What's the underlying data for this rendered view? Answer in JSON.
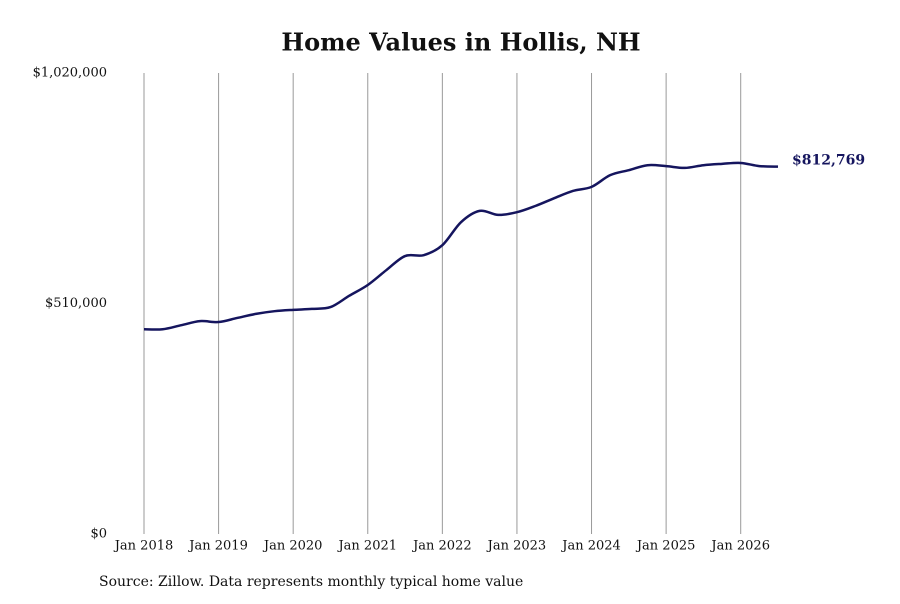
{
  "chart_data": {
    "type": "line",
    "title": "Home Values in Hollis, NH",
    "source": "Source: Zillow. Data represents monthly typical home value",
    "x": [
      "2018-01",
      "2018-04",
      "2018-07",
      "2018-10",
      "2019-01",
      "2019-04",
      "2019-07",
      "2019-10",
      "2020-01",
      "2020-04",
      "2020-07",
      "2020-10",
      "2021-01",
      "2021-04",
      "2021-07",
      "2021-10",
      "2022-01",
      "2022-04",
      "2022-07",
      "2022-10",
      "2023-01",
      "2023-04",
      "2023-07",
      "2023-10",
      "2024-01",
      "2024-04",
      "2024-07",
      "2024-10",
      "2025-01",
      "2025-04",
      "2025-07",
      "2025-10",
      "2026-01",
      "2026-04",
      "2026-07"
    ],
    "series": [
      {
        "name": "Home value",
        "color": "#15155e",
        "values": [
          453000,
          453000,
          462000,
          471000,
          469000,
          478000,
          487000,
          493000,
          496000,
          498000,
          502000,
          527000,
          551000,
          584000,
          615000,
          617000,
          639000,
          690000,
          715000,
          706000,
          712000,
          726000,
          743000,
          759000,
          768000,
          794000,
          805000,
          816000,
          814000,
          810000,
          816000,
          819000,
          821000,
          814000,
          812769
        ],
        "value_labels": [
          null,
          null,
          null,
          null,
          null,
          null,
          null,
          null,
          null,
          null,
          null,
          null,
          null,
          null,
          null,
          null,
          null,
          null,
          null,
          null,
          null,
          null,
          null,
          null,
          null,
          null,
          null,
          null,
          null,
          null,
          null,
          null,
          null,
          null,
          "$812,769"
        ]
      }
    ],
    "xlim": [
      "2018-01",
      "2026-07"
    ],
    "xticks": [
      {
        "value": "2018-01",
        "label": "Jan 2018"
      },
      {
        "value": "2019-01",
        "label": "Jan 2019"
      },
      {
        "value": "2020-01",
        "label": "Jan 2020"
      },
      {
        "value": "2021-01",
        "label": "Jan 2021"
      },
      {
        "value": "2022-01",
        "label": "Jan 2022"
      },
      {
        "value": "2023-01",
        "label": "Jan 2023"
      },
      {
        "value": "2024-01",
        "label": "Jan 2024"
      },
      {
        "value": "2025-01",
        "label": "Jan 2025"
      },
      {
        "value": "2026-01",
        "label": "Jan 2026"
      }
    ],
    "ylim": [
      0,
      1020000
    ],
    "yticks": [
      {
        "value": 0,
        "label": "$0"
      },
      {
        "value": 510000,
        "label": "$510,000"
      },
      {
        "value": 1020000,
        "label": "$1,020,000"
      }
    ],
    "grid": "x"
  }
}
